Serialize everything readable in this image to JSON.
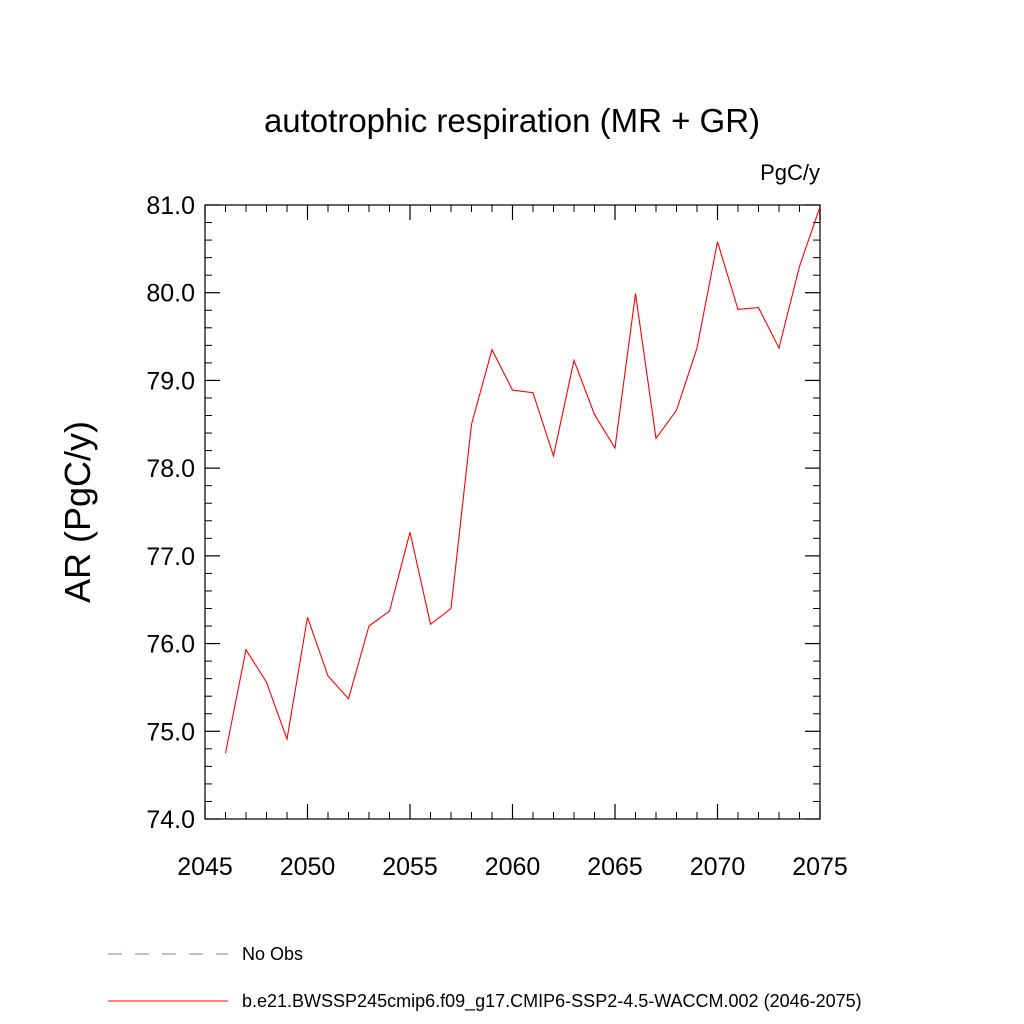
{
  "chart_data": {
    "type": "line",
    "title": "autotrophic respiration (MR + GR)",
    "units": "PgC/y",
    "ylabel": "AR  (PgC/y)",
    "xlabel": "",
    "xlim": [
      2046,
      2075
    ],
    "ylim": [
      74.0,
      81.0
    ],
    "x_ticks": [
      2045,
      2050,
      2055,
      2060,
      2065,
      2070,
      2075
    ],
    "x_tick_labels": [
      "2045",
      "2050",
      "2055",
      "2060",
      "2065",
      "2070",
      "2075"
    ],
    "y_ticks": [
      74.0,
      75.0,
      76.0,
      77.0,
      78.0,
      79.0,
      80.0,
      81.0
    ],
    "y_tick_labels": [
      "74.0",
      "75.0",
      "76.0",
      "77.0",
      "78.0",
      "79.0",
      "80.0",
      "81.0"
    ],
    "grid": false,
    "legend_position": "bottom",
    "series": [
      {
        "name": "b.e21.BWSSP245cmip6.f09_g17.CMIP6-SSP2-4.5-WACCM.002 (2046-2075)",
        "color": "#ff0000",
        "style": "solid",
        "x": [
          2046,
          2047,
          2048,
          2049,
          2050,
          2051,
          2052,
          2053,
          2054,
          2055,
          2056,
          2057,
          2058,
          2059,
          2060,
          2061,
          2062,
          2063,
          2064,
          2065,
          2066,
          2067,
          2068,
          2069,
          2070,
          2071,
          2072,
          2073,
          2074,
          2075
        ],
        "values": [
          74.75,
          75.93,
          75.56,
          74.91,
          76.3,
          75.63,
          75.37,
          76.2,
          76.37,
          77.27,
          76.22,
          76.4,
          78.5,
          79.35,
          78.89,
          78.86,
          78.14,
          79.23,
          78.61,
          78.23,
          79.99,
          78.34,
          78.66,
          79.37,
          80.58,
          79.81,
          79.83,
          79.37,
          80.3,
          80.98
        ]
      }
    ],
    "legend": [
      {
        "label": "No Obs",
        "color": "#7f7fbf",
        "style": "dashed"
      },
      {
        "label": "b.e21.BWSSP245cmip6.f09_g17.CMIP6-SSP2-4.5-WACCM.002 (2046-2075)",
        "color": "#ff0000",
        "style": "solid"
      }
    ]
  }
}
